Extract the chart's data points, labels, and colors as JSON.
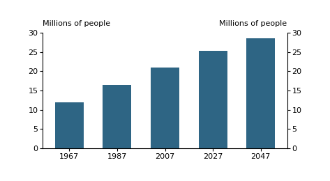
{
  "categories": [
    "1967",
    "1987",
    "2007",
    "2027",
    "2047"
  ],
  "values": [
    12.0,
    16.4,
    21.0,
    25.3,
    28.5
  ],
  "bar_color": "#2e6584",
  "ylim": [
    0,
    30
  ],
  "yticks": [
    0,
    5,
    10,
    15,
    20,
    25,
    30
  ],
  "ylabel_left": "Millions of people",
  "ylabel_right": "Millions of people",
  "background_color": "#ffffff",
  "bar_width": 0.6,
  "tick_fontsize": 8,
  "label_fontsize": 8
}
